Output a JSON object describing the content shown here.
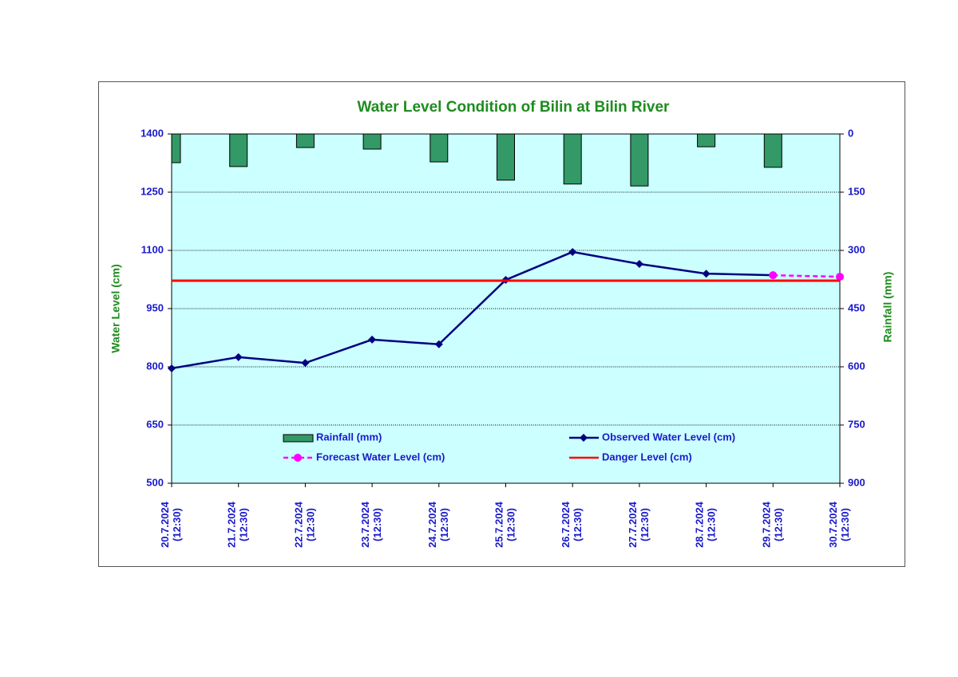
{
  "chart_data": {
    "type": "line",
    "title": "Water Level Condition of Bilin at Bilin River",
    "y_label": "Water Level (cm)",
    "y2_label": "Rainfall (mm)",
    "categories": [
      "20.7.2024 (12:30)",
      "21.7.2024 (12:30)",
      "22.7.2024 (12:30)",
      "23.7.2024 (12:30)",
      "24.7.2024 (12:30)",
      "25.7.2024 (12:30)",
      "26.7.2024 (12:30)",
      "27.7.2024 (12:30)",
      "28.7.2024 (12:30)",
      "29.7.2024 (12:30)",
      "30.7.2024 (12:30)"
    ],
    "ylim": [
      500,
      1400
    ],
    "yticks": [
      500,
      650,
      800,
      950,
      1100,
      1250,
      1400
    ],
    "y2lim": [
      900,
      0
    ],
    "y2ticks": [
      900,
      750,
      600,
      450,
      300,
      150,
      0
    ],
    "grid": true,
    "series": [
      {
        "name": "Rainfall (mm)",
        "kind": "bar",
        "axis": "y2",
        "color": "#339966",
        "values": [
          74,
          84,
          35,
          39,
          72,
          119,
          129,
          134,
          33,
          86,
          null
        ]
      },
      {
        "name": "Observed Water Level (cm)",
        "kind": "line",
        "marker": "diamond",
        "color": "#000080",
        "values": [
          796,
          825,
          810,
          870,
          858,
          1024,
          1096,
          1065,
          1040,
          1036,
          null
        ]
      },
      {
        "name": "Forecast Water Level (cm)",
        "kind": "line",
        "marker": "circle",
        "dashed": true,
        "color": "#ff00ff",
        "values": [
          null,
          null,
          null,
          null,
          null,
          null,
          null,
          null,
          null,
          1036,
          1032
        ]
      },
      {
        "name": "Danger Level (cm)",
        "kind": "line",
        "color": "#ff0000",
        "values": [
          1022,
          1022,
          1022,
          1022,
          1022,
          1022,
          1022,
          1022,
          1022,
          1022,
          1022
        ]
      }
    ]
  }
}
